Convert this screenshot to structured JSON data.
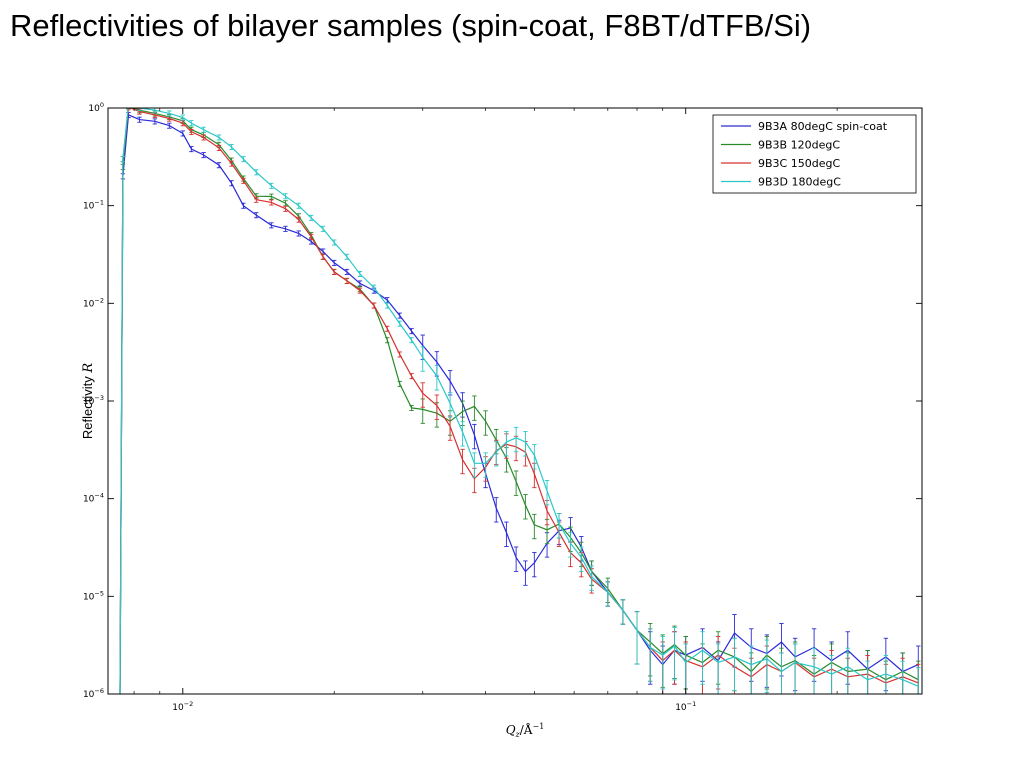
{
  "slide": {
    "title": "Reflectivities of bilayer samples  (spin-coat, F8BT/dTFB/Si)"
  },
  "chart_data": {
    "type": "line",
    "title": "",
    "xlabel": "Q_z/Å^-1",
    "ylabel": "Reflectivity R",
    "xlabel_main": "Q",
    "xlabel_sub": "z",
    "xlabel_unit": "/Å",
    "xlabel_sup": "−1",
    "ylabel_text": "Reflectivity",
    "ylabel_var": "R",
    "xscale": "log",
    "yscale": "log",
    "xlim": [
      0.0071,
      0.295
    ],
    "ylim": [
      1e-06,
      1.0
    ],
    "grid": false,
    "legend_position": "top-right",
    "x_ticks": [
      {
        "value": 0.01,
        "base": "10",
        "exp": "−2"
      },
      {
        "value": 0.1,
        "base": "10",
        "exp": "−1"
      }
    ],
    "y_ticks": [
      {
        "value": 1,
        "base": "10",
        "exp": "0"
      },
      {
        "value": 0.1,
        "base": "10",
        "exp": "−1"
      },
      {
        "value": 0.01,
        "base": "10",
        "exp": "−2"
      },
      {
        "value": 0.001,
        "base": "10",
        "exp": "−3"
      },
      {
        "value": 0.0001,
        "base": "10",
        "exp": "−4"
      },
      {
        "value": 1e-05,
        "base": "10",
        "exp": "−5"
      },
      {
        "value": 1e-06,
        "base": "10",
        "exp": "−6"
      }
    ],
    "series": [
      {
        "name": "9B3A  80degC spin-coat",
        "color": "#2a2ad8",
        "points": [
          [
            0.0075,
            1e-06
          ],
          [
            0.0076,
            0.2
          ],
          [
            0.0078,
            0.85
          ],
          [
            0.0082,
            0.76
          ],
          [
            0.0088,
            0.73
          ],
          [
            0.0094,
            0.66
          ],
          [
            0.01,
            0.55
          ],
          [
            0.0104,
            0.38
          ],
          [
            0.011,
            0.33
          ],
          [
            0.0118,
            0.26
          ],
          [
            0.0125,
            0.17
          ],
          [
            0.0132,
            0.1
          ],
          [
            0.014,
            0.08
          ],
          [
            0.015,
            0.063
          ],
          [
            0.016,
            0.058
          ],
          [
            0.017,
            0.052
          ],
          [
            0.018,
            0.043
          ],
          [
            0.019,
            0.034
          ],
          [
            0.02,
            0.026
          ],
          [
            0.0212,
            0.021
          ],
          [
            0.0225,
            0.016
          ],
          [
            0.024,
            0.0135
          ],
          [
            0.0255,
            0.0108
          ],
          [
            0.027,
            0.0075
          ],
          [
            0.0285,
            0.0052
          ],
          [
            0.03,
            0.0037
          ],
          [
            0.032,
            0.0025
          ],
          [
            0.034,
            0.0016
          ],
          [
            0.036,
            0.00095
          ],
          [
            0.038,
            0.00045
          ],
          [
            0.04,
            0.00018
          ],
          [
            0.042,
            8e-05
          ],
          [
            0.044,
            4.5e-05
          ],
          [
            0.046,
            2.5e-05
          ],
          [
            0.048,
            1.8e-05
          ],
          [
            0.05,
            2.2e-05
          ],
          [
            0.053,
            3.5e-05
          ],
          [
            0.056,
            4.7e-05
          ],
          [
            0.059,
            5e-05
          ],
          [
            0.062,
            3.2e-05
          ],
          [
            0.065,
            1.8e-05
          ],
          [
            0.07,
            1.1e-05
          ],
          [
            0.075,
            7.2e-06
          ],
          [
            0.08,
            4.5e-06
          ],
          [
            0.085,
            2.8e-06
          ],
          [
            0.09,
            2e-06
          ],
          [
            0.095,
            2.8e-06
          ],
          [
            0.1,
            2.5e-06
          ],
          [
            0.108,
            3e-06
          ],
          [
            0.116,
            2.2e-06
          ],
          [
            0.125,
            4.2e-06
          ],
          [
            0.135,
            3e-06
          ],
          [
            0.145,
            2.6e-06
          ],
          [
            0.155,
            3.4e-06
          ],
          [
            0.165,
            2.4e-06
          ],
          [
            0.18,
            3e-06
          ],
          [
            0.195,
            2.2e-06
          ],
          [
            0.21,
            2.8e-06
          ],
          [
            0.23,
            1.8e-06
          ],
          [
            0.25,
            2.4e-06
          ],
          [
            0.27,
            1.7e-06
          ],
          [
            0.29,
            2e-06
          ]
        ]
      },
      {
        "name": "9B3B 120degC",
        "color": "#2a8a2a",
        "points": [
          [
            0.0075,
            1e-06
          ],
          [
            0.0076,
            0.25
          ],
          [
            0.0078,
            1.05
          ],
          [
            0.0082,
            0.95
          ],
          [
            0.0088,
            0.88
          ],
          [
            0.0094,
            0.81
          ],
          [
            0.01,
            0.74
          ],
          [
            0.0104,
            0.6
          ],
          [
            0.011,
            0.53
          ],
          [
            0.0118,
            0.42
          ],
          [
            0.0125,
            0.29
          ],
          [
            0.0132,
            0.19
          ],
          [
            0.014,
            0.125
          ],
          [
            0.015,
            0.124
          ],
          [
            0.016,
            0.106
          ],
          [
            0.017,
            0.078
          ],
          [
            0.018,
            0.05
          ],
          [
            0.019,
            0.03
          ],
          [
            0.02,
            0.021
          ],
          [
            0.0212,
            0.017
          ],
          [
            0.0225,
            0.014
          ],
          [
            0.024,
            0.0095
          ],
          [
            0.0255,
            0.0042
          ],
          [
            0.027,
            0.0015
          ],
          [
            0.0285,
            0.00085
          ],
          [
            0.03,
            0.00082
          ],
          [
            0.032,
            0.00075
          ],
          [
            0.034,
            0.00062
          ],
          [
            0.036,
            0.00078
          ],
          [
            0.038,
            0.00088
          ],
          [
            0.04,
            0.00062
          ],
          [
            0.042,
            0.0004
          ],
          [
            0.044,
            0.00026
          ],
          [
            0.046,
            0.00015
          ],
          [
            0.048,
            8.6e-05
          ],
          [
            0.05,
            5.4e-05
          ],
          [
            0.053,
            4.8e-05
          ],
          [
            0.056,
            5.5e-05
          ],
          [
            0.059,
            4e-05
          ],
          [
            0.062,
            2.8e-05
          ],
          [
            0.065,
            1.8e-05
          ],
          [
            0.07,
            1.2e-05
          ],
          [
            0.075,
            7.2e-06
          ],
          [
            0.08,
            4.5e-06
          ],
          [
            0.085,
            3.4e-06
          ],
          [
            0.09,
            2.6e-06
          ],
          [
            0.095,
            3.2e-06
          ],
          [
            0.1,
            2.5e-06
          ],
          [
            0.108,
            2.1e-06
          ],
          [
            0.116,
            2.8e-06
          ],
          [
            0.125,
            2.4e-06
          ],
          [
            0.135,
            1.7e-06
          ],
          [
            0.145,
            2.5e-06
          ],
          [
            0.155,
            1.9e-06
          ],
          [
            0.165,
            2.2e-06
          ],
          [
            0.18,
            1.6e-06
          ],
          [
            0.195,
            2.1e-06
          ],
          [
            0.21,
            1.7e-06
          ],
          [
            0.23,
            1.8e-06
          ],
          [
            0.25,
            1.4e-06
          ],
          [
            0.27,
            1.7e-06
          ],
          [
            0.29,
            1.4e-06
          ]
        ]
      },
      {
        "name": "9B3C 150degC",
        "color": "#d83030",
        "points": [
          [
            0.0075,
            1e-06
          ],
          [
            0.0076,
            0.3
          ],
          [
            0.0078,
            1.02
          ],
          [
            0.0082,
            0.92
          ],
          [
            0.0088,
            0.85
          ],
          [
            0.0094,
            0.78
          ],
          [
            0.01,
            0.7
          ],
          [
            0.0104,
            0.57
          ],
          [
            0.011,
            0.5
          ],
          [
            0.0118,
            0.39
          ],
          [
            0.0125,
            0.27
          ],
          [
            0.0132,
            0.18
          ],
          [
            0.014,
            0.115
          ],
          [
            0.015,
            0.108
          ],
          [
            0.016,
            0.093
          ],
          [
            0.017,
            0.072
          ],
          [
            0.018,
            0.048
          ],
          [
            0.019,
            0.03
          ],
          [
            0.02,
            0.021
          ],
          [
            0.0212,
            0.017
          ],
          [
            0.0225,
            0.0135
          ],
          [
            0.024,
            0.0095
          ],
          [
            0.0255,
            0.0055
          ],
          [
            0.027,
            0.003
          ],
          [
            0.0285,
            0.0018
          ],
          [
            0.03,
            0.0012
          ],
          [
            0.032,
            0.0009
          ],
          [
            0.034,
            0.00055
          ],
          [
            0.036,
            0.00025
          ],
          [
            0.038,
            0.00016
          ],
          [
            0.04,
            0.00021
          ],
          [
            0.042,
            0.00031
          ],
          [
            0.044,
            0.00036
          ],
          [
            0.046,
            0.00034
          ],
          [
            0.048,
            0.0003
          ],
          [
            0.05,
            0.00018
          ],
          [
            0.053,
            7.5e-05
          ],
          [
            0.056,
            4.5e-05
          ],
          [
            0.059,
            2.8e-05
          ],
          [
            0.062,
            2.2e-05
          ],
          [
            0.065,
            1.5e-05
          ],
          [
            0.07,
            1.1e-05
          ],
          [
            0.075,
            7.2e-06
          ],
          [
            0.08,
            4.5e-06
          ],
          [
            0.085,
            3e-06
          ],
          [
            0.09,
            2.2e-06
          ],
          [
            0.095,
            2.8e-06
          ],
          [
            0.1,
            2.2e-06
          ],
          [
            0.108,
            1.9e-06
          ],
          [
            0.116,
            2.5e-06
          ],
          [
            0.125,
            1.9e-06
          ],
          [
            0.135,
            1.5e-06
          ],
          [
            0.145,
            2e-06
          ],
          [
            0.155,
            1.7e-06
          ],
          [
            0.165,
            2.1e-06
          ],
          [
            0.18,
            1.5e-06
          ],
          [
            0.195,
            1.8e-06
          ],
          [
            0.21,
            1.5e-06
          ],
          [
            0.23,
            1.6e-06
          ],
          [
            0.25,
            1.3e-06
          ],
          [
            0.27,
            1.5e-06
          ],
          [
            0.29,
            1.3e-06
          ]
        ]
      },
      {
        "name": "9B3D 180degC",
        "color": "#2ac8c8",
        "points": [
          [
            0.0075,
            1e-06
          ],
          [
            0.0076,
            0.3
          ],
          [
            0.0078,
            1.1
          ],
          [
            0.0082,
            1.0
          ],
          [
            0.0088,
            0.95
          ],
          [
            0.0094,
            0.88
          ],
          [
            0.01,
            0.8
          ],
          [
            0.0104,
            0.7
          ],
          [
            0.011,
            0.6
          ],
          [
            0.0118,
            0.5
          ],
          [
            0.0125,
            0.4
          ],
          [
            0.0132,
            0.3
          ],
          [
            0.014,
            0.22
          ],
          [
            0.015,
            0.16
          ],
          [
            0.016,
            0.125
          ],
          [
            0.017,
            0.1
          ],
          [
            0.018,
            0.075
          ],
          [
            0.019,
            0.058
          ],
          [
            0.02,
            0.042
          ],
          [
            0.0212,
            0.03
          ],
          [
            0.0225,
            0.02
          ],
          [
            0.024,
            0.0145
          ],
          [
            0.0255,
            0.0095
          ],
          [
            0.027,
            0.0062
          ],
          [
            0.0285,
            0.0042
          ],
          [
            0.03,
            0.0028
          ],
          [
            0.032,
            0.0018
          ],
          [
            0.034,
            0.00095
          ],
          [
            0.036,
            0.00048
          ],
          [
            0.038,
            0.00023
          ],
          [
            0.04,
            0.00023
          ],
          [
            0.042,
            0.0003
          ],
          [
            0.044,
            0.00038
          ],
          [
            0.046,
            0.00042
          ],
          [
            0.048,
            0.00038
          ],
          [
            0.05,
            0.00028
          ],
          [
            0.053,
            0.00012
          ],
          [
            0.056,
            5.5e-05
          ],
          [
            0.059,
            3.5e-05
          ],
          [
            0.062,
            2.5e-05
          ],
          [
            0.065,
            1.6e-05
          ],
          [
            0.07,
            1.1e-05
          ],
          [
            0.075,
            7.2e-06
          ],
          [
            0.08,
            4.5e-06
          ],
          [
            0.085,
            3e-06
          ],
          [
            0.09,
            2.5e-06
          ],
          [
            0.095,
            3.1e-06
          ],
          [
            0.1,
            2.1e-06
          ],
          [
            0.108,
            2.8e-06
          ],
          [
            0.116,
            2.1e-06
          ],
          [
            0.125,
            2.4e-06
          ],
          [
            0.135,
            2e-06
          ],
          [
            0.145,
            2.3e-06
          ],
          [
            0.155,
            1.7e-06
          ],
          [
            0.165,
            2.1e-06
          ],
          [
            0.18,
            1.9e-06
          ],
          [
            0.195,
            1.6e-06
          ],
          [
            0.21,
            1.9e-06
          ],
          [
            0.23,
            1.4e-06
          ],
          [
            0.25,
            1.6e-06
          ],
          [
            0.27,
            1.4e-06
          ],
          [
            0.29,
            1.2e-06
          ]
        ]
      }
    ]
  }
}
